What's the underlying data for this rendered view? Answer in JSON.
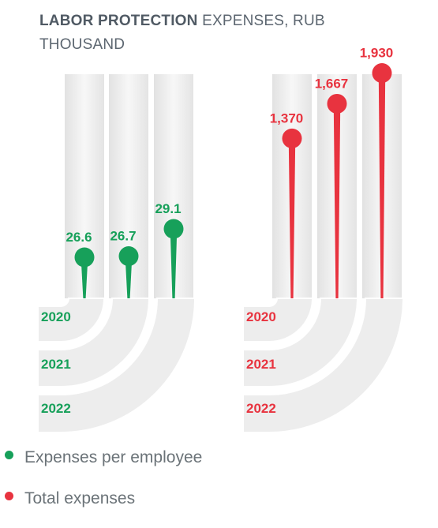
{
  "header": {
    "title_bold": "LABOR PROTECTION",
    "title_rest": " EXPENSES, RUB THOUSAND"
  },
  "colors": {
    "green": "#17a05a",
    "red": "#e8333f",
    "panel": "#eeeeee"
  },
  "legend": [
    {
      "label": "Expenses per employee",
      "color": "#17a05a"
    },
    {
      "label": "Total expenses",
      "color": "#e8333f"
    }
  ],
  "chart_data": [
    {
      "type": "lollipop",
      "name": "Expenses per employee",
      "categories": [
        "2020",
        "2021",
        "2022"
      ],
      "values": [
        26.6,
        26.7,
        29.1
      ],
      "labels": [
        "26.6",
        "26.7",
        "29.1"
      ],
      "color": "#17a05a"
    },
    {
      "type": "lollipop",
      "name": "Total expenses",
      "categories": [
        "2020",
        "2021",
        "2022"
      ],
      "values": [
        1370,
        1667,
        1930
      ],
      "labels": [
        "1,370",
        "1,667",
        "1,930"
      ],
      "color": "#e8333f"
    }
  ]
}
